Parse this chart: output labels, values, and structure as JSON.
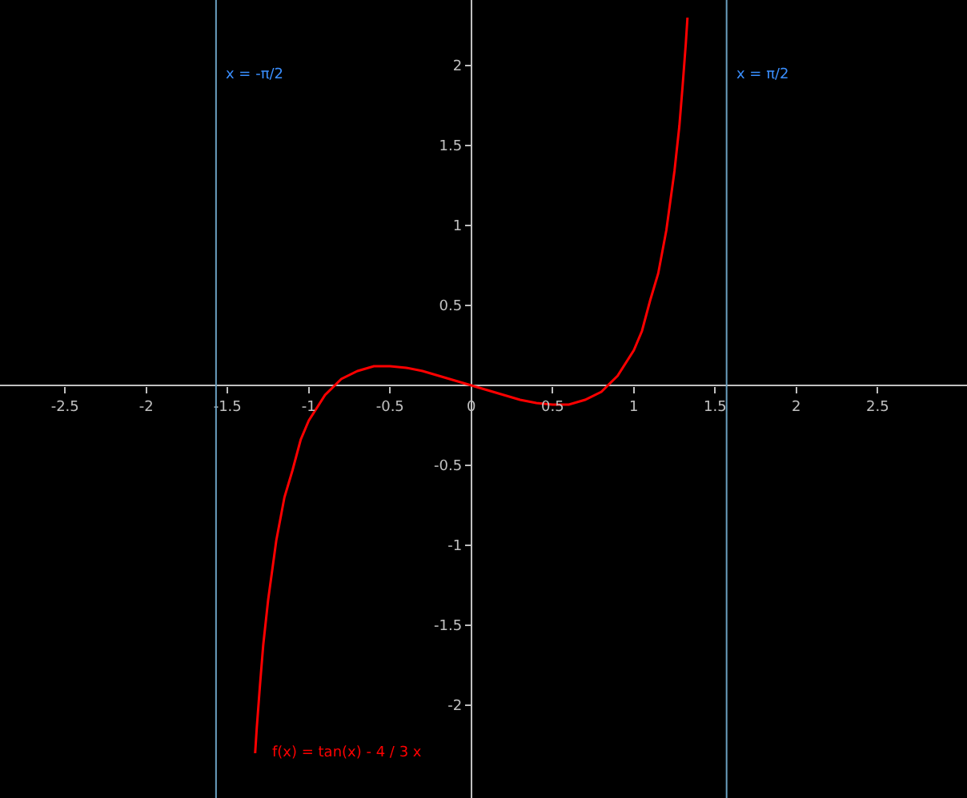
{
  "chart_data": {
    "type": "line",
    "x": [
      -1.33,
      -1.32,
      -1.3,
      -1.28,
      -1.25,
      -1.2,
      -1.15,
      -1.1,
      -1.05,
      -1.0,
      -0.9,
      -0.8,
      -0.7,
      -0.6,
      -0.5,
      -0.4,
      -0.3,
      -0.2,
      -0.1,
      0,
      0.1,
      0.2,
      0.3,
      0.4,
      0.5,
      0.6,
      0.7,
      0.8,
      0.9,
      1.0,
      1.05,
      1.1,
      1.15,
      1.2,
      1.25,
      1.28,
      1.3,
      1.32,
      1.33
    ],
    "series": [
      {
        "color": "#ff0000",
        "values": [
          -2.3,
          -2.14,
          -1.87,
          -1.62,
          -1.34,
          -0.97,
          -0.7,
          -0.53,
          -0.34,
          -0.22,
          -0.06,
          0.04,
          0.09,
          0.12,
          0.12,
          0.11,
          0.09,
          0.06,
          0.03,
          0,
          -0.03,
          -0.06,
          -0.09,
          -0.11,
          -0.12,
          -0.12,
          -0.09,
          -0.04,
          0.06,
          0.22,
          0.34,
          0.53,
          0.7,
          0.97,
          1.34,
          1.62,
          1.87,
          2.14,
          2.3
        ]
      }
    ],
    "xlim": [
      -2.9,
      3.05
    ],
    "ylim": [
      -2.58,
      2.41
    ],
    "xticks": [
      -2.5,
      -2,
      -1.5,
      -1,
      -0.5,
      0,
      0.5,
      1,
      1.5,
      2,
      2.5
    ],
    "yticks": [
      -2,
      -1.5,
      -1,
      -0.5,
      0.5,
      1,
      1.5,
      2
    ],
    "grid": false,
    "legend": false,
    "marker": "none",
    "line_style": "solid",
    "ref_lines": [
      {
        "axis": "x",
        "value": -1.5708,
        "label": "x = -π/2",
        "color": "#6a9fbf"
      },
      {
        "axis": "x",
        "value": 1.5708,
        "label": "x = π/2",
        "color": "#6a9fbf"
      }
    ],
    "annotations": [
      {
        "text": "f(x) = tan(x) - 4 / 3 x",
        "x": -1.3,
        "y": -2.3
      }
    ]
  }
}
